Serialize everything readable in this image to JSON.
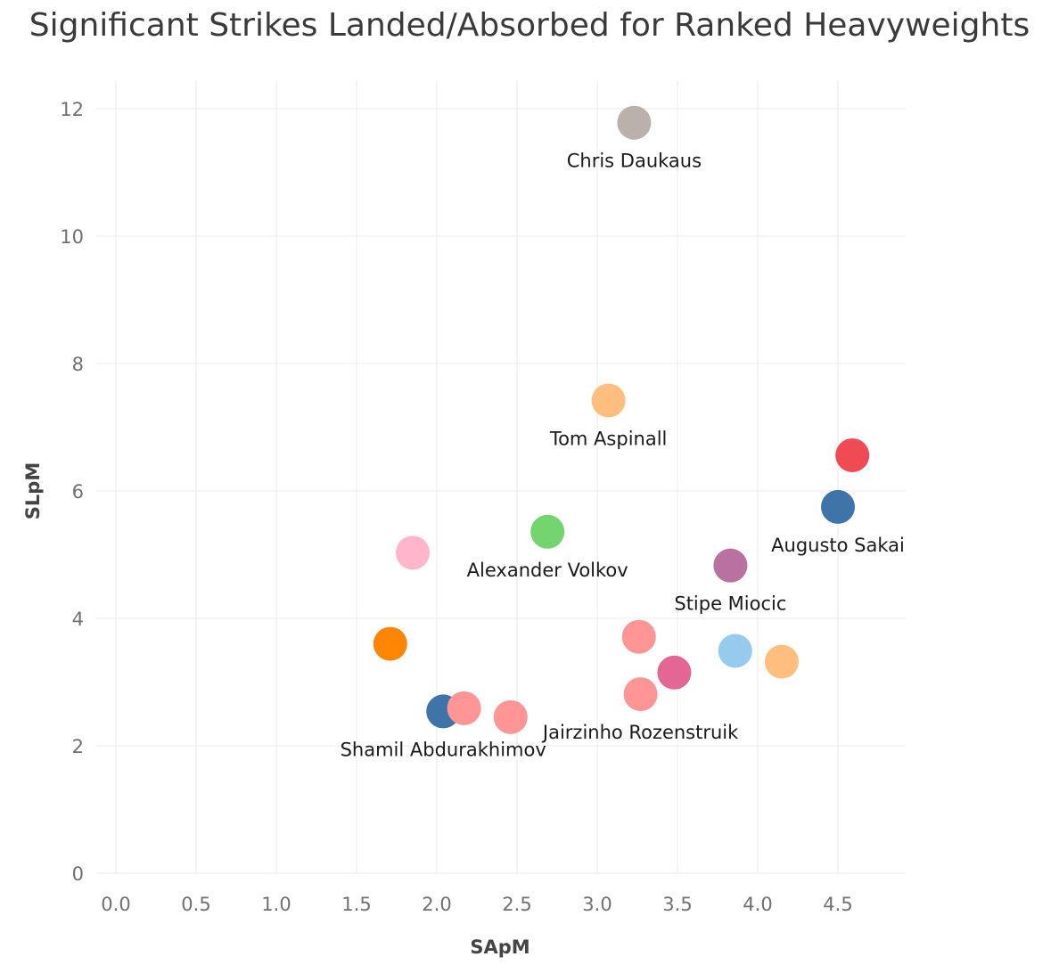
{
  "chart_data": {
    "type": "scatter",
    "title": "Significant Strikes Landed/Absorbed for Ranked Heavyweights",
    "xlabel": "SApM",
    "ylabel": "SLpM",
    "xlim": [
      -0.05,
      4.9
    ],
    "ylim": [
      -0.25,
      12.6
    ],
    "x_ticks": [
      "0.0",
      "0.5",
      "1.0",
      "1.5",
      "2.0",
      "2.5",
      "3.0",
      "3.5",
      "4.0",
      "4.5"
    ],
    "y_ticks": [
      "0",
      "2",
      "4",
      "6",
      "8",
      "10",
      "12"
    ],
    "grid": true,
    "legend": "none",
    "points": [
      {
        "x": 3.23,
        "y": 11.78,
        "color": "#bab0ac",
        "label": "Chris Daukaus"
      },
      {
        "x": 3.07,
        "y": 7.42,
        "color": "#ffbe7d",
        "label": "Tom Aspinall"
      },
      {
        "x": 4.59,
        "y": 6.56,
        "color": "#f04a55",
        "label": ""
      },
      {
        "x": 4.5,
        "y": 5.75,
        "color": "#3f74a8",
        "label": "Augusto Sakai"
      },
      {
        "x": 2.69,
        "y": 5.36,
        "color": "#73d470",
        "label": "Alexander Volkov"
      },
      {
        "x": 1.85,
        "y": 5.03,
        "color": "#ffb6cc",
        "label": ""
      },
      {
        "x": 3.83,
        "y": 4.83,
        "color": "#b871a1",
        "label": "Stipe Miocic"
      },
      {
        "x": 1.71,
        "y": 3.6,
        "color": "#ff8505",
        "label": ""
      },
      {
        "x": 3.26,
        "y": 3.71,
        "color": "#ff9595",
        "label": ""
      },
      {
        "x": 3.86,
        "y": 3.49,
        "color": "#97cbee",
        "label": ""
      },
      {
        "x": 4.15,
        "y": 3.32,
        "color": "#ffbe7d",
        "label": ""
      },
      {
        "x": 3.48,
        "y": 3.15,
        "color": "#e36694",
        "label": ""
      },
      {
        "x": 3.27,
        "y": 2.81,
        "color": "#ff9595",
        "label": "Jairzinho Rozenstruik"
      },
      {
        "x": 2.04,
        "y": 2.54,
        "color": "#3f74a8",
        "label": "Shamil Abdurakhimov"
      },
      {
        "x": 2.17,
        "y": 2.59,
        "color": "#ff9595",
        "label": ""
      },
      {
        "x": 2.46,
        "y": 2.45,
        "color": "#ff9595",
        "label": ""
      }
    ]
  }
}
